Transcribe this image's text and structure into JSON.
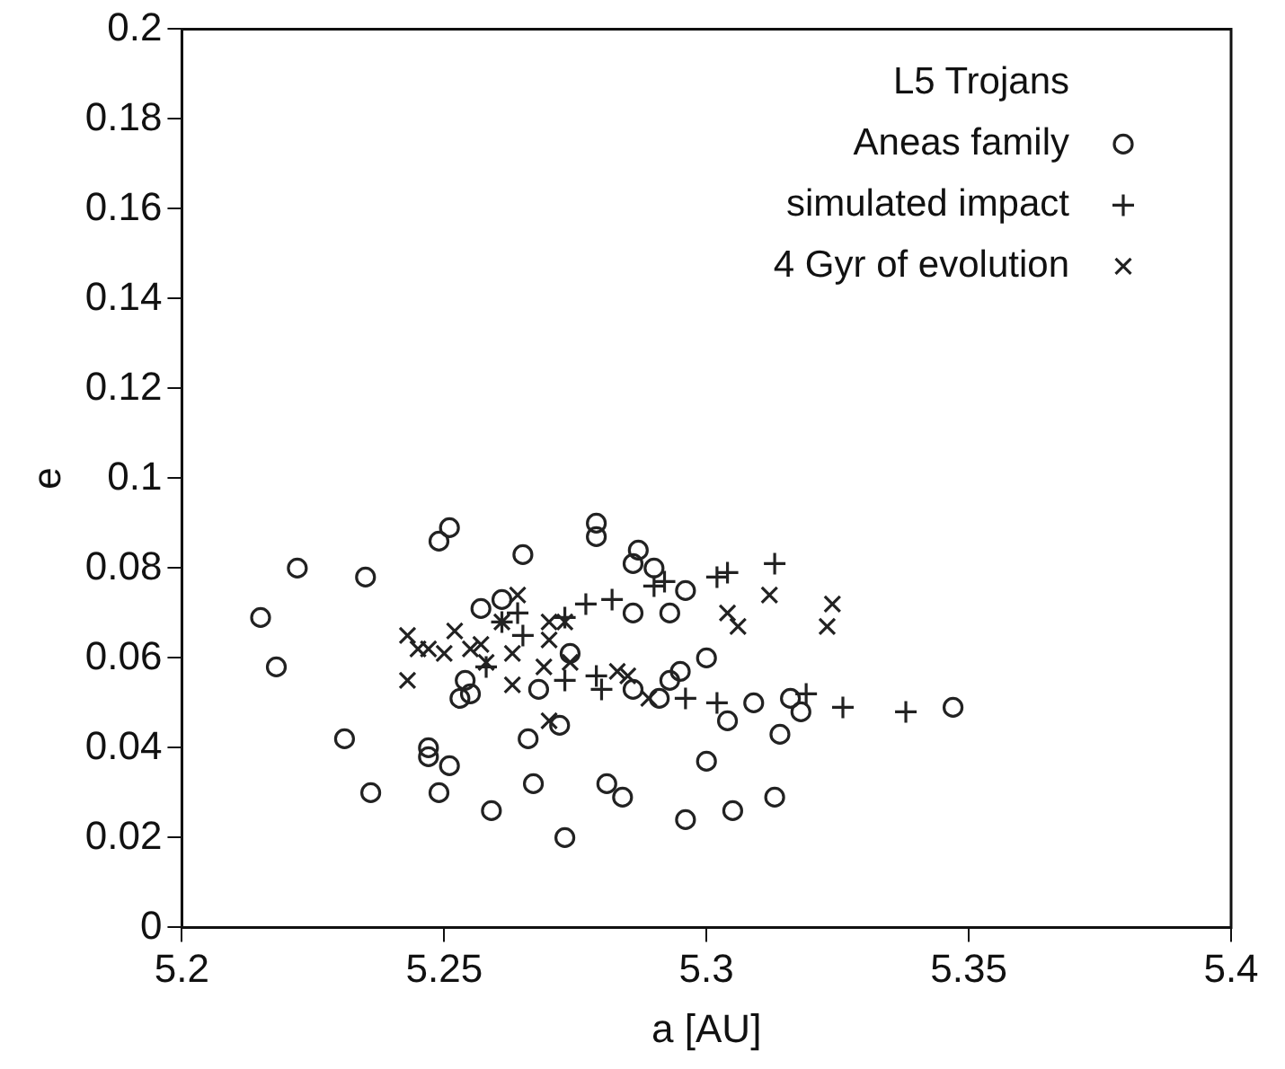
{
  "chart_data": {
    "type": "scatter",
    "xlabel": "a [AU]",
    "ylabel": "e",
    "legend_title": "L5 Trojans",
    "xlim": [
      5.2,
      5.4
    ],
    "xticks": [
      5.2,
      5.25,
      5.3,
      5.35,
      5.4
    ],
    "ylim": [
      0,
      0.2
    ],
    "yticks": [
      0,
      0.02,
      0.04,
      0.06,
      0.08,
      0.1,
      0.12,
      0.14,
      0.16,
      0.18,
      0.2
    ],
    "grid": false,
    "legend": "top right",
    "series": [
      {
        "name": "Aneas family",
        "color": "#222222",
        "marker": "circle",
        "x": [
          5.251,
          5.249,
          5.222,
          5.235,
          5.215,
          5.218,
          5.265,
          5.257,
          5.261,
          5.254,
          5.253,
          5.255,
          5.268,
          5.274,
          5.272,
          5.266,
          5.231,
          5.247,
          5.247,
          5.251,
          5.236,
          5.249,
          5.267,
          5.259,
          5.273,
          5.279,
          5.279,
          5.287,
          5.286,
          5.29,
          5.296,
          5.286,
          5.293,
          5.3,
          5.295,
          5.293,
          5.286,
          5.291,
          5.309,
          5.304,
          5.316,
          5.318,
          5.314,
          5.3,
          5.281,
          5.284,
          5.305,
          5.313,
          5.296,
          5.347
        ],
        "values": [
          0.089,
          0.086,
          0.08,
          0.078,
          0.069,
          0.058,
          0.083,
          0.071,
          0.073,
          0.055,
          0.051,
          0.052,
          0.053,
          0.061,
          0.045,
          0.042,
          0.042,
          0.04,
          0.038,
          0.036,
          0.03,
          0.03,
          0.032,
          0.026,
          0.02,
          0.09,
          0.087,
          0.084,
          0.081,
          0.08,
          0.075,
          0.07,
          0.07,
          0.06,
          0.057,
          0.055,
          0.053,
          0.051,
          0.05,
          0.046,
          0.051,
          0.048,
          0.043,
          0.037,
          0.032,
          0.029,
          0.026,
          0.029,
          0.024,
          0.049
        ]
      },
      {
        "name": "simulated impact",
        "color": "#222222",
        "marker": "cross",
        "x": [
          5.277,
          5.265,
          5.264,
          5.273,
          5.258,
          5.261,
          5.273,
          5.282,
          5.29,
          5.292,
          5.302,
          5.304,
          5.313,
          5.279,
          5.28,
          5.296,
          5.302,
          5.319,
          5.326,
          5.338
        ],
        "values": [
          0.072,
          0.065,
          0.07,
          0.055,
          0.058,
          0.068,
          0.069,
          0.073,
          0.076,
          0.077,
          0.078,
          0.079,
          0.081,
          0.056,
          0.053,
          0.051,
          0.05,
          0.052,
          0.049,
          0.048
        ]
      },
      {
        "name": "4 Gyr of evolution",
        "color": "#222222",
        "marker": "x",
        "x": [
          5.243,
          5.243,
          5.245,
          5.247,
          5.25,
          5.252,
          5.255,
          5.257,
          5.258,
          5.261,
          5.263,
          5.263,
          5.264,
          5.27,
          5.27,
          5.269,
          5.273,
          5.274,
          5.27,
          5.283,
          5.285,
          5.289,
          5.312,
          5.304,
          5.306,
          5.324,
          5.323
        ],
        "values": [
          0.065,
          0.055,
          0.062,
          0.062,
          0.061,
          0.066,
          0.062,
          0.063,
          0.059,
          0.068,
          0.061,
          0.054,
          0.074,
          0.068,
          0.064,
          0.058,
          0.068,
          0.059,
          0.046,
          0.057,
          0.056,
          0.051,
          0.074,
          0.07,
          0.067,
          0.072,
          0.067
        ]
      }
    ]
  }
}
